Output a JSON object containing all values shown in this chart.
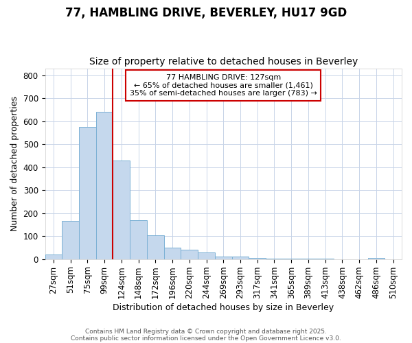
{
  "title1": "77, HAMBLING DRIVE, BEVERLEY, HU17 9GD",
  "title2": "Size of property relative to detached houses in Beverley",
  "xlabel": "Distribution of detached houses by size in Beverley",
  "ylabel": "Number of detached properties",
  "bar_labels": [
    "27sqm",
    "51sqm",
    "75sqm",
    "99sqm",
    "124sqm",
    "148sqm",
    "172sqm",
    "196sqm",
    "220sqm",
    "244sqm",
    "269sqm",
    "293sqm",
    "317sqm",
    "341sqm",
    "365sqm",
    "389sqm",
    "413sqm",
    "438sqm",
    "462sqm",
    "486sqm",
    "510sqm"
  ],
  "bar_values": [
    20,
    165,
    575,
    640,
    430,
    170,
    105,
    50,
    40,
    30,
    12,
    10,
    5,
    3,
    2,
    1,
    1,
    0,
    0,
    5,
    0
  ],
  "bar_color": "#c5d8ed",
  "bar_edgecolor": "#7ab0d4",
  "vline_color": "#cc0000",
  "annotation_text": "77 HAMBLING DRIVE: 127sqm\n← 65% of detached houses are smaller (1,461)\n35% of semi-detached houses are larger (783) →",
  "annotation_box_color": "#cc0000",
  "ylim": [
    0,
    830
  ],
  "yticks": [
    0,
    100,
    200,
    300,
    400,
    500,
    600,
    700,
    800
  ],
  "grid_color": "#c8d4e8",
  "bg_color": "#ffffff",
  "footer1": "Contains HM Land Registry data © Crown copyright and database right 2025.",
  "footer2": "Contains public sector information licensed under the Open Government Licence v3.0.",
  "title_fontsize": 12,
  "subtitle_fontsize": 10,
  "axis_label_fontsize": 9,
  "tick_fontsize": 8.5,
  "annotation_fontsize": 8
}
